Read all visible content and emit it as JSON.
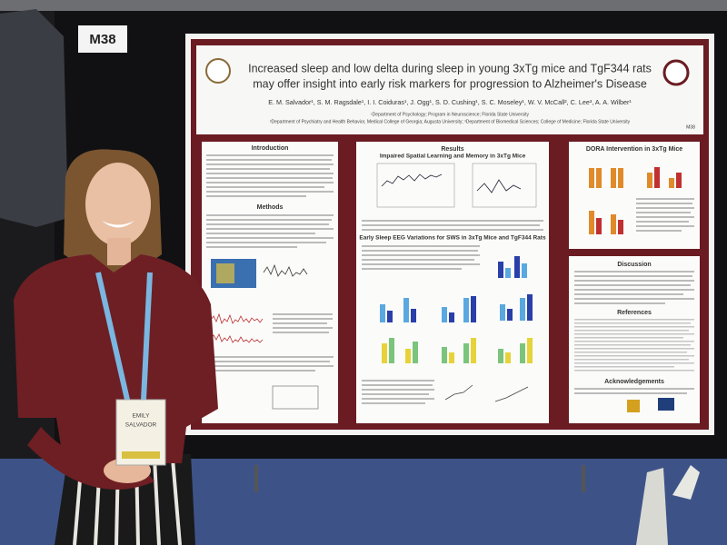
{
  "board_label": "M38",
  "poster": {
    "code": "M38",
    "title": [
      "Increased sleep and low delta during sleep in young 3xTg mice and TgF344 rats",
      "may offer insight into early risk markers for progression to Alzheimer's Disease"
    ],
    "authors": "E. M. Salvador¹, S. M. Ragsdale¹, I. I. Coiduras¹, J. Ogg¹, S. D. Cushing¹, S. C. Moseley¹, W. V. McCall², C. Lee³, A. A. Wilber¹",
    "affiliations": [
      "¹Department of Psychology; Program in Neuroscience; Florida State University",
      "²Department of Psychiatry and Health Behavior, Medical College of Georgia; Augusta University; ³Department of Biomedical Sciences; College of Medicine; Florida State University"
    ],
    "sections": {
      "introduction": "Introduction",
      "methods": "Methods",
      "results": "Results",
      "dora": "DORA Intervention in 3xTg Mice",
      "discussion": "Discussion",
      "references": "References",
      "acknowledgements": "Acknowledgements"
    },
    "figure_titles": [
      "Impaired Spatial Learning and Memory in 3xTg Mice",
      "Early Sleep EEG Variations for SWS in 3xTg Mice and TgF344 Rats"
    ]
  },
  "badge": {
    "first_name": "EMILY",
    "last_name": "SALVADOR"
  }
}
